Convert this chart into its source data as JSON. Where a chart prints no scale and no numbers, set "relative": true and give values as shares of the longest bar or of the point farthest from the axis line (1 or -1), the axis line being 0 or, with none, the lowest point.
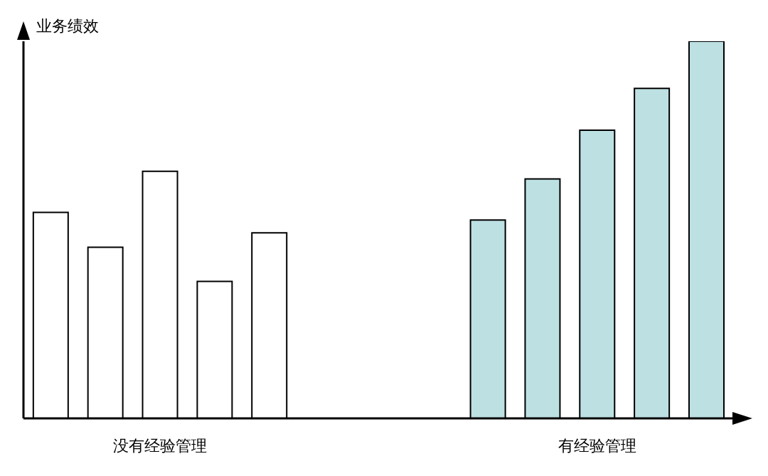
{
  "chart_data": {
    "type": "bar",
    "relative": true,
    "ylabel": "业务绩效",
    "categories": [
      null,
      null,
      "没有经验管理",
      null,
      null,
      null,
      null,
      null,
      null,
      null,
      "有经验管理",
      null,
      null
    ],
    "values": [
      0.546,
      0.454,
      0.655,
      0.363,
      0.492,
      null,
      null,
      null,
      0.526,
      0.635,
      0.764,
      0.875,
      1
    ],
    "colors": [
      "#ffffff",
      "#ffffff",
      "#ffffff",
      "#ffffff",
      "#ffffff",
      null,
      null,
      null,
      "#bde0e3",
      "#bde0e3",
      "#bde0e3",
      "#bde0e3",
      "#bde0e3"
    ],
    "grid": false,
    "legend": false
  }
}
